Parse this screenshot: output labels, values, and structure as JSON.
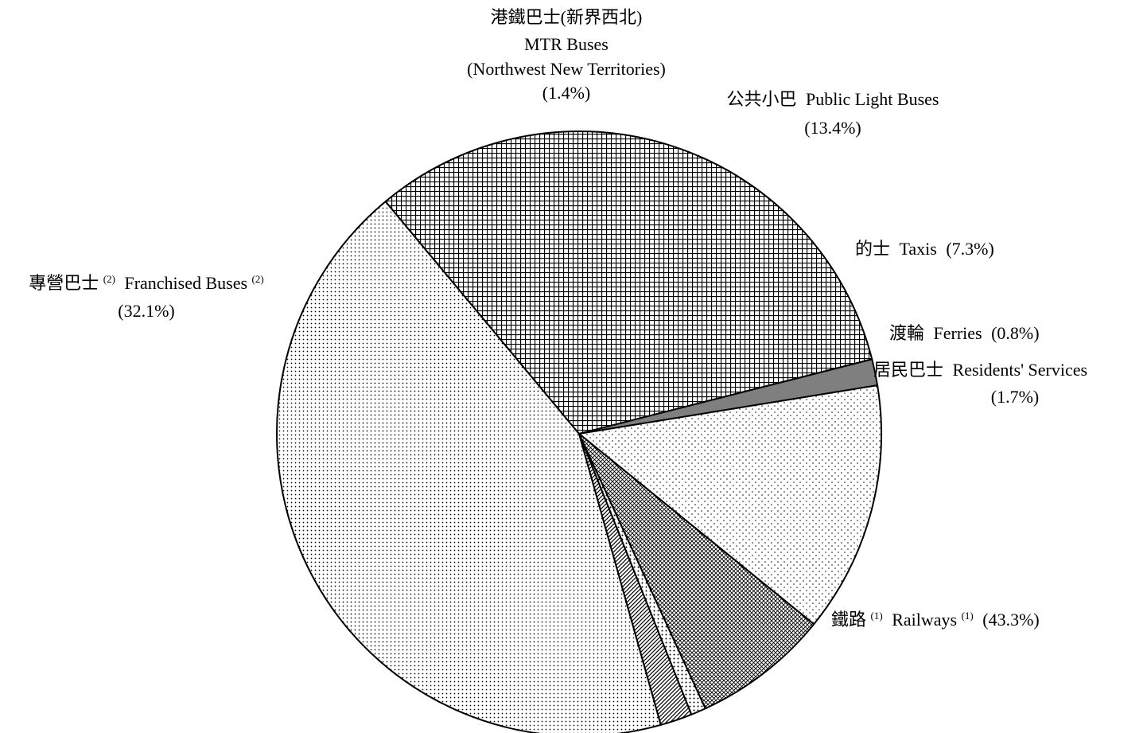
{
  "chart_data": {
    "type": "pie",
    "start_angle_deg": 74.3,
    "direction": "clockwise",
    "slices": [
      {
        "id": "railways",
        "label_zh": "鐵路",
        "sup_zh": "(1)",
        "label_en": "Railways",
        "sup_en": "(1)",
        "percent_text": "(43.3%)",
        "value": 43.3,
        "pattern": "dots-fine"
      },
      {
        "id": "franchised",
        "label_zh": "專營巴士",
        "sup_zh": "(2)",
        "label_en": "Franchised Buses",
        "sup_en": "(2)",
        "percent_text": "(32.1%)",
        "value": 32.1,
        "pattern": "grid"
      },
      {
        "id": "mtr_buses",
        "label_zh": "港鐵巴士(新界西北)",
        "label_en": "MTR Buses",
        "label_en2": "(Northwest New Territories)",
        "percent_text": "(1.4%)",
        "value": 1.4,
        "pattern": "solid-gray"
      },
      {
        "id": "plb",
        "label_zh": "公共小巴",
        "label_en": "Public Light Buses",
        "percent_text": "(13.4%)",
        "value": 13.4,
        "pattern": "dots-sparse"
      },
      {
        "id": "taxis",
        "label_zh": "的士",
        "label_en": "Taxis",
        "percent_text": "(7.3%)",
        "value": 7.3,
        "pattern": "crosshatch-diagonal"
      },
      {
        "id": "ferries",
        "label_zh": "渡輪",
        "label_en": "Ferries",
        "percent_text": "(0.8%)",
        "value": 0.8,
        "pattern": "dots-medium"
      },
      {
        "id": "residents",
        "label_zh": "居民巴士",
        "label_en": "Residents' Services",
        "percent_text": "(1.7%)",
        "value": 1.7,
        "pattern": "diagonal-lines"
      }
    ],
    "colors": {
      "stroke": "#000000",
      "pattern_ink": "#000000",
      "solid_gray": "#7f7f7f",
      "background": "#ffffff"
    }
  }
}
